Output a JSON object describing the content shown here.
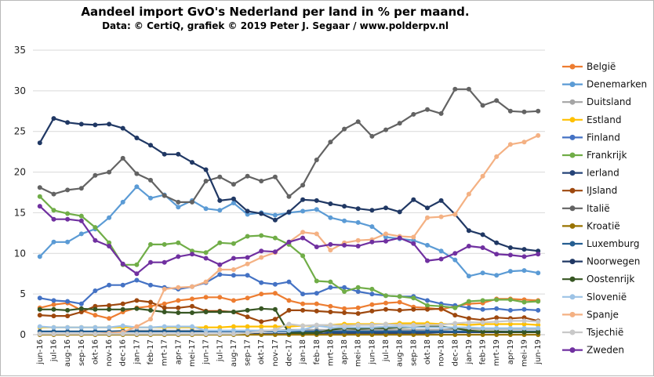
{
  "chart_data": {
    "type": "line",
    "title": "Aandeel import GvO's Nederland per land in % per maand.",
    "subtitle": "Data: © CertiQ, grafiek © 2019 Peter J. Segaar / www.polderpv.nl",
    "ylim": [
      0,
      35
    ],
    "yticks": [
      0,
      5,
      10,
      15,
      20,
      25,
      30,
      35
    ],
    "grid": "horizontal",
    "legend_position": "right",
    "x": [
      "jun-16",
      "jul-16",
      "aug-16",
      "sep-16",
      "okt-16",
      "nov-16",
      "dec-16",
      "jan-17",
      "feb-17",
      "mrt-17",
      "apr-17",
      "mei-17",
      "jun-17",
      "jul-17",
      "aug-17",
      "sep-17",
      "okt-17",
      "nov-17",
      "dec-17",
      "jan-18",
      "feb-18",
      "mrt-18",
      "apr-18",
      "mei-18",
      "jun-18",
      "jul-18",
      "aug-18",
      "sep-18",
      "okt-18",
      "nov-18",
      "dec-18",
      "jan-19",
      "feb-19",
      "mrt-19",
      "apr-19",
      "mei-19",
      "jun-19"
    ],
    "series": [
      {
        "name": "België",
        "color": "#ED7D31",
        "values": [
          3.3,
          3.7,
          3.9,
          3.0,
          2.4,
          2.0,
          2.8,
          3.3,
          3.5,
          3.8,
          4.2,
          4.4,
          4.6,
          4.6,
          4.2,
          4.5,
          5.0,
          5.1,
          4.2,
          3.8,
          3.8,
          3.5,
          3.2,
          3.3,
          3.7,
          3.9,
          4.0,
          3.4,
          3.3,
          3.1,
          3.5,
          3.8,
          3.9,
          4.4,
          4.4,
          4.3,
          4.2
        ]
      },
      {
        "name": "Denemarken",
        "color": "#5B9BD5",
        "values": [
          9.6,
          11.4,
          11.4,
          12.4,
          13.0,
          14.4,
          16.3,
          18.2,
          16.8,
          17.2,
          15.7,
          16.5,
          15.5,
          15.3,
          16.2,
          14.8,
          15.0,
          14.7,
          15.0,
          15.2,
          15.4,
          14.4,
          14.0,
          13.8,
          13.3,
          12.0,
          11.8,
          11.6,
          11.0,
          10.3,
          9.2,
          7.2,
          7.6,
          7.3,
          7.8,
          7.9,
          7.6
        ]
      },
      {
        "name": "Duitsland",
        "color": "#A5A5A5",
        "values": [
          0.4,
          0.4,
          0.4,
          0.4,
          0.4,
          0.4,
          0.5,
          0.5,
          0.5,
          0.5,
          0.5,
          0.5,
          0.5,
          0.5,
          0.5,
          0.5,
          0.5,
          0.5,
          0.6,
          0.6,
          0.6,
          0.6,
          0.6,
          0.6,
          0.6,
          0.6,
          0.6,
          0.6,
          0.6,
          0.6,
          0.7,
          0.7,
          0.7,
          0.7,
          0.7,
          0.7,
          0.7
        ]
      },
      {
        "name": "Estland",
        "color": "#FFC000",
        "values": [
          0.9,
          0.9,
          0.9,
          0.9,
          0.9,
          0.9,
          0.9,
          0.9,
          0.9,
          0.9,
          0.9,
          0.9,
          0.9,
          0.9,
          1.0,
          1.0,
          1.0,
          1.0,
          1.0,
          1.1,
          1.1,
          1.2,
          1.3,
          1.3,
          1.3,
          1.3,
          1.4,
          1.4,
          1.4,
          1.3,
          1.3,
          1.2,
          1.3,
          1.3,
          1.3,
          1.3,
          1.2
        ]
      },
      {
        "name": "Finland",
        "color": "#4472C4",
        "values": [
          4.5,
          4.2,
          4.1,
          3.8,
          5.4,
          6.1,
          6.1,
          6.7,
          6.1,
          5.8,
          5.6,
          5.9,
          6.4,
          7.4,
          7.3,
          7.3,
          6.4,
          6.2,
          6.5,
          5.0,
          5.1,
          5.8,
          5.8,
          5.3,
          5.0,
          4.8,
          4.7,
          4.7,
          4.2,
          3.8,
          3.6,
          3.3,
          3.1,
          3.2,
          3.0,
          3.1,
          3.0
        ]
      },
      {
        "name": "Frankrijk",
        "color": "#70AD47",
        "values": [
          17.0,
          15.3,
          14.9,
          14.6,
          13.2,
          11.3,
          8.6,
          8.6,
          11.1,
          11.1,
          11.3,
          10.3,
          10.1,
          11.3,
          11.2,
          12.1,
          12.2,
          11.9,
          11.1,
          9.7,
          6.6,
          6.5,
          5.3,
          5.8,
          5.6,
          4.8,
          4.7,
          4.5,
          3.6,
          3.5,
          3.3,
          4.1,
          4.2,
          4.3,
          4.3,
          4.0,
          4.1
        ]
      },
      {
        "name": "Ierland",
        "color": "#264478",
        "values": [
          0.1,
          0.1,
          0.1,
          0.1,
          0.1,
          0.1,
          0.1,
          0.1,
          0.1,
          0.1,
          0.1,
          0.1,
          0.1,
          0.1,
          0.1,
          0.1,
          0.1,
          0.1,
          0.1,
          0.1,
          0.1,
          0.2,
          0.2,
          0.2,
          0.2,
          0.2,
          0.2,
          0.2,
          0.2,
          0.3,
          0.3,
          0.3,
          0.3,
          0.3,
          0.3,
          0.3,
          0.3
        ]
      },
      {
        "name": "IJsland",
        "color": "#9E480E",
        "values": [
          2.4,
          2.3,
          2.3,
          2.8,
          3.5,
          3.6,
          3.8,
          4.2,
          4.0,
          3.3,
          3.3,
          3.5,
          2.9,
          2.9,
          2.8,
          2.2,
          1.6,
          1.9,
          3.0,
          3.0,
          2.9,
          2.8,
          2.7,
          2.6,
          2.9,
          3.1,
          3.0,
          3.1,
          3.1,
          3.2,
          2.4,
          2.0,
          1.8,
          2.1,
          2.0,
          2.1,
          1.7
        ]
      },
      {
        "name": "Italië",
        "color": "#636363",
        "values": [
          18.1,
          17.3,
          17.8,
          18.0,
          19.6,
          20.0,
          21.7,
          19.8,
          19.0,
          17.1,
          16.3,
          16.3,
          18.9,
          19.4,
          18.5,
          19.5,
          18.9,
          19.4,
          17.0,
          18.4,
          21.5,
          23.7,
          25.3,
          26.2,
          24.4,
          25.2,
          26.0,
          27.1,
          27.7,
          27.2,
          30.2,
          30.2,
          28.2,
          28.8,
          27.5,
          27.4,
          27.5
        ]
      },
      {
        "name": "Kroatië",
        "color": "#997300",
        "values": [
          0.0,
          0.0,
          0.0,
          0.0,
          0.0,
          0.0,
          0.0,
          0.0,
          0.0,
          0.0,
          0.0,
          0.0,
          0.0,
          0.0,
          0.0,
          0.0,
          0.0,
          0.0,
          0.0,
          0.0,
          0.0,
          0.0,
          0.0,
          0.0,
          0.0,
          0.0,
          0.0,
          0.0,
          0.0,
          0.0,
          0.0,
          0.0,
          0.0,
          0.0,
          0.0,
          0.0,
          0.0
        ]
      },
      {
        "name": "Luxemburg",
        "color": "#255E91",
        "values": [
          0.4,
          0.4,
          0.4,
          0.4,
          0.4,
          0.4,
          0.4,
          0.4,
          0.4,
          0.4,
          0.4,
          0.4,
          0.4,
          0.4,
          0.4,
          0.4,
          0.4,
          0.4,
          0.4,
          0.4,
          0.4,
          0.4,
          0.4,
          0.4,
          0.4,
          0.4,
          0.4,
          0.4,
          0.4,
          0.4,
          0.4,
          0.4,
          0.4,
          0.4,
          0.4,
          0.4,
          0.4
        ]
      },
      {
        "name": "Noorwegen",
        "color": "#203864",
        "values": [
          23.6,
          26.6,
          26.1,
          25.9,
          25.8,
          25.9,
          25.4,
          24.2,
          23.3,
          22.2,
          22.2,
          21.2,
          20.3,
          16.5,
          16.7,
          15.2,
          14.9,
          14.1,
          15.1,
          16.6,
          16.5,
          16.1,
          15.8,
          15.5,
          15.3,
          15.6,
          15.1,
          16.6,
          15.6,
          16.5,
          14.8,
          12.8,
          12.3,
          11.3,
          10.7,
          10.5,
          10.3
        ]
      },
      {
        "name": "Oostenrijk",
        "color": "#375623",
        "values": [
          3.1,
          3.1,
          3.0,
          3.2,
          3.1,
          3.1,
          3.1,
          3.2,
          3.0,
          2.8,
          2.7,
          2.7,
          2.8,
          2.8,
          2.8,
          3.0,
          3.2,
          3.1,
          0.2,
          0.2,
          0.2,
          0.6,
          0.8,
          0.7,
          0.8,
          0.8,
          0.9,
          0.9,
          1.0,
          1.0,
          0.8,
          0.5,
          0.4,
          0.4,
          0.3,
          0.3,
          0.3
        ]
      },
      {
        "name": "Slovenië",
        "color": "#9DC3E6",
        "values": [
          1.0,
          0.9,
          0.9,
          0.9,
          0.9,
          0.9,
          1.1,
          0.9,
          0.9,
          1.0,
          1.0,
          1.0,
          0.5,
          0.5,
          0.5,
          0.5,
          0.5,
          0.5,
          0.5,
          0.6,
          1.1,
          0.9,
          0.9,
          0.9,
          0.9,
          1.0,
          1.0,
          0.9,
          0.9,
          0.9,
          0.9,
          0.9,
          0.8,
          0.8,
          0.8,
          0.8,
          0.8
        ]
      },
      {
        "name": "Spanje",
        "color": "#F4B183",
        "values": [
          0.1,
          0.1,
          0.1,
          0.1,
          0.1,
          0.2,
          0.3,
          1.0,
          1.9,
          5.6,
          5.8,
          5.9,
          6.5,
          8.0,
          8.0,
          8.7,
          9.5,
          10.1,
          11.4,
          12.6,
          12.4,
          10.4,
          11.3,
          11.6,
          11.7,
          12.4,
          12.1,
          12.0,
          14.4,
          14.5,
          14.8,
          17.3,
          19.5,
          21.9,
          23.4,
          23.7,
          24.5
        ]
      },
      {
        "name": "Tsjechië",
        "color": "#C9C9C9",
        "values": [
          0.1,
          0.1,
          0.1,
          0.1,
          0.1,
          0.1,
          0.1,
          0.1,
          0.1,
          0.1,
          0.1,
          0.1,
          0.1,
          0.1,
          0.1,
          0.2,
          0.4,
          0.6,
          1.3,
          1.1,
          1.2,
          1.2,
          1.1,
          1.2,
          1.2,
          1.3,
          1.2,
          1.2,
          1.2,
          1.2,
          1.4,
          1.5,
          1.5,
          1.6,
          1.7,
          1.7,
          1.6
        ]
      },
      {
        "name": "Zweden",
        "color": "#7030A0",
        "values": [
          15.8,
          14.2,
          14.2,
          14.0,
          11.6,
          10.9,
          8.7,
          7.5,
          8.9,
          8.9,
          9.6,
          9.9,
          9.4,
          8.6,
          9.4,
          9.5,
          10.3,
          10.2,
          11.4,
          11.9,
          10.8,
          11.1,
          11.0,
          10.9,
          11.4,
          11.5,
          11.9,
          11.2,
          9.1,
          9.3,
          10.0,
          10.9,
          10.7,
          9.9,
          9.8,
          9.6,
          9.9
        ]
      }
    ]
  }
}
